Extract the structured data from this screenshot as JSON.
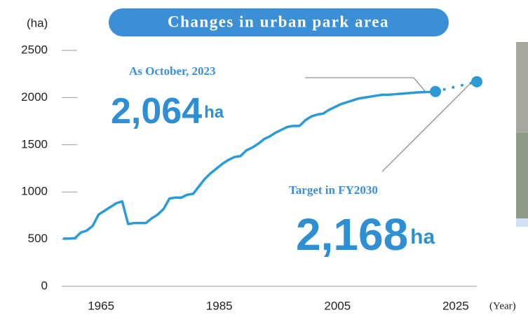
{
  "chart_data": {
    "type": "line",
    "title": "Changes in urban park area",
    "y_label": "(ha)",
    "x_label": "(Year)",
    "x": [
      1960,
      1961,
      1962,
      1963,
      1964,
      1965,
      1966,
      1967,
      1968,
      1969,
      1970,
      1971,
      1972,
      1973,
      1974,
      1975,
      1976,
      1977,
      1978,
      1979,
      1980,
      1981,
      1982,
      1983,
      1984,
      1985,
      1986,
      1987,
      1988,
      1989,
      1990,
      1991,
      1992,
      1993,
      1994,
      1995,
      1996,
      1997,
      1998,
      1999,
      2000,
      2001,
      2002,
      2003,
      2004,
      2005,
      2006,
      2007,
      2008,
      2009,
      2010,
      2011,
      2012,
      2013,
      2014,
      2015,
      2016,
      2017,
      2018,
      2019,
      2020,
      2021,
      2022,
      2023
    ],
    "values": [
      505,
      505,
      510,
      570,
      590,
      640,
      760,
      800,
      840,
      880,
      900,
      660,
      670,
      670,
      670,
      720,
      760,
      820,
      930,
      940,
      940,
      970,
      980,
      1060,
      1140,
      1200,
      1250,
      1300,
      1340,
      1370,
      1380,
      1440,
      1470,
      1510,
      1560,
      1590,
      1630,
      1660,
      1690,
      1700,
      1700,
      1760,
      1800,
      1820,
      1830,
      1870,
      1900,
      1930,
      1950,
      1970,
      1990,
      2000,
      2010,
      2020,
      2030,
      2030,
      2035,
      2040,
      2045,
      2050,
      2055,
      2058,
      2060,
      2064
    ],
    "color": "#2b9ad8",
    "target": {
      "x": [
        2023,
        2030
      ],
      "values": [
        2064,
        2168
      ]
    },
    "annotations": [
      {
        "text": "As October, 2023",
        "value": 2064,
        "label": "2,064",
        "unit": "ha"
      },
      {
        "text": "Target in FY2030",
        "value": 2168,
        "label": "2,168",
        "unit": "ha"
      }
    ],
    "xlim": [
      1960,
      2030
    ],
    "xticks": [
      1965,
      1985,
      2005,
      2025
    ],
    "ylim": [
      0,
      2500
    ],
    "yticks": [
      0,
      500,
      1000,
      1500,
      2000,
      2500
    ]
  }
}
